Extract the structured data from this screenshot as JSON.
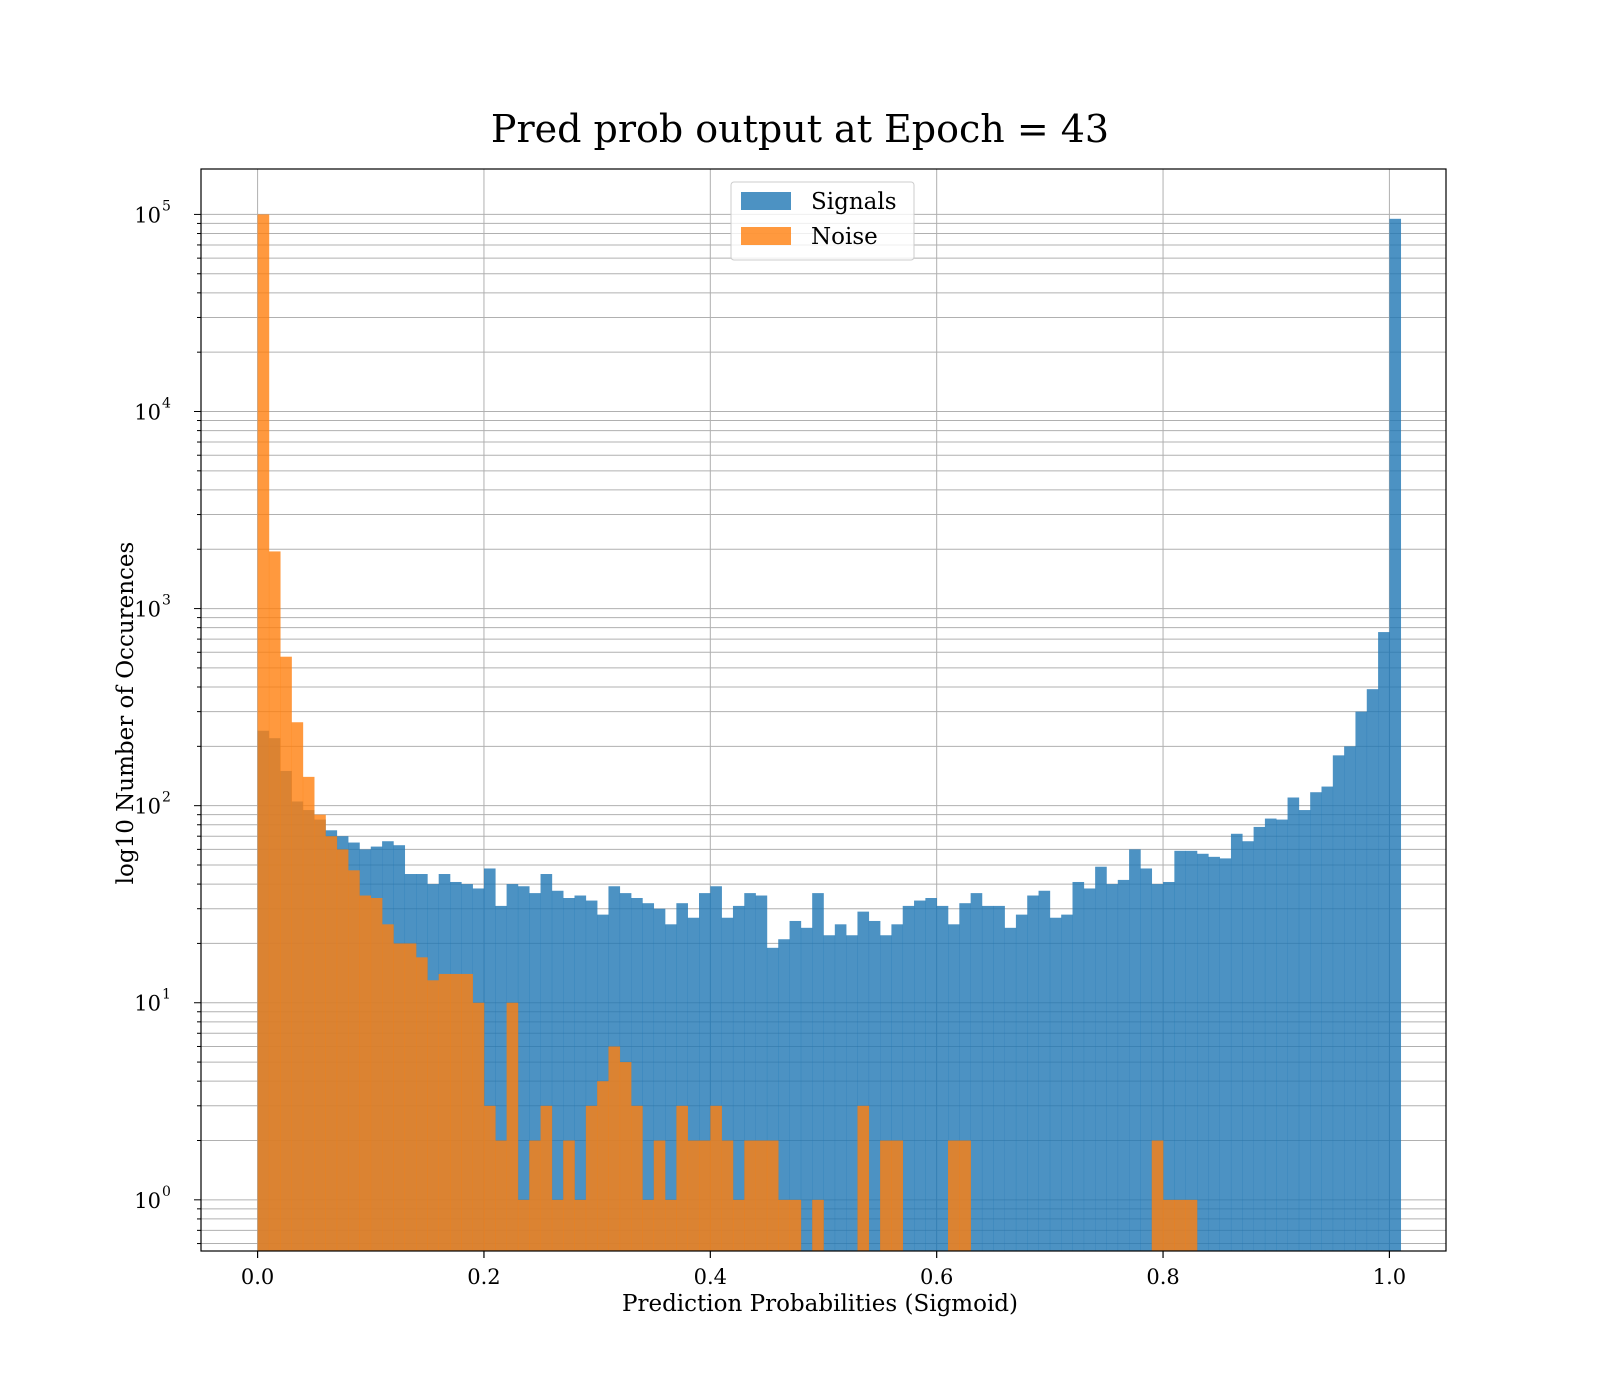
{
  "chart_data": {
    "type": "bar",
    "title": "Pred prob output at Epoch = 43",
    "xlabel": "Prediction Probabilities (Sigmoid)",
    "ylabel": "log10 Number of Occurences",
    "xlim": [
      -0.05,
      1.05
    ],
    "ylim": [
      0.55,
      170000
    ],
    "yscale": "log",
    "grid": true,
    "legend_position": "top-center",
    "bin_width": 0.01,
    "x_ticks": [
      "0.0",
      "0.2",
      "0.4",
      "0.6",
      "0.8",
      "1.0"
    ],
    "x_tick_values": [
      0.0,
      0.2,
      0.4,
      0.6,
      0.8,
      1.0
    ],
    "y_ticks": [
      {
        "base": "10",
        "exp": "0",
        "value": 1
      },
      {
        "base": "10",
        "exp": "1",
        "value": 10
      },
      {
        "base": "10",
        "exp": "2",
        "value": 100
      },
      {
        "base": "10",
        "exp": "3",
        "value": 1000
      },
      {
        "base": "10",
        "exp": "4",
        "value": 10000
      },
      {
        "base": "10",
        "exp": "5",
        "value": 100000
      }
    ],
    "series": [
      {
        "name": "Signals",
        "color": "#1f77b4",
        "opacity": 0.8,
        "values": [
          240,
          220,
          150,
          105,
          95,
          85,
          75,
          70,
          65,
          60,
          62,
          66,
          63,
          45,
          45,
          40,
          45,
          41,
          40,
          38,
          48,
          31,
          40,
          39,
          36,
          45,
          37,
          34,
          35,
          33,
          28,
          39,
          36,
          34,
          32,
          30,
          25,
          32,
          27,
          36,
          39,
          27,
          31,
          36,
          35,
          19,
          21,
          26,
          24,
          36,
          22,
          25,
          22,
          29,
          26,
          22,
          25,
          31,
          33,
          34,
          31,
          25,
          32,
          36,
          31,
          31,
          24,
          28,
          35,
          37,
          27,
          28,
          41,
          38,
          49,
          40,
          42,
          60,
          48,
          40,
          41,
          59,
          59,
          57,
          55,
          54,
          72,
          66,
          78,
          86,
          85,
          110,
          95,
          117,
          125,
          180,
          200,
          300,
          390,
          760,
          95000
        ]
      },
      {
        "name": "Noise",
        "color": "#ff7f0e",
        "opacity": 0.8,
        "values": [
          100000,
          1950,
          570,
          265,
          140,
          90,
          70,
          60,
          47,
          35,
          34,
          25,
          20,
          20,
          17,
          13,
          14,
          14,
          14,
          10,
          3,
          2,
          10,
          1,
          2,
          3,
          1,
          2,
          1,
          3,
          4,
          6,
          5,
          3,
          1,
          2,
          1,
          3,
          2,
          2,
          3,
          2,
          1,
          2,
          2,
          2,
          1,
          1,
          0,
          1,
          0,
          0,
          0,
          3,
          0,
          2,
          2,
          0,
          0,
          0,
          0,
          2,
          2,
          0,
          0,
          0,
          0,
          0,
          0,
          0,
          0,
          0,
          0,
          0,
          0,
          0,
          0,
          0,
          0,
          2,
          1,
          1,
          1,
          0,
          0,
          0,
          0,
          0,
          0,
          0,
          0,
          0,
          0,
          0,
          0,
          0,
          0,
          0,
          0,
          0,
          0
        ]
      }
    ]
  }
}
